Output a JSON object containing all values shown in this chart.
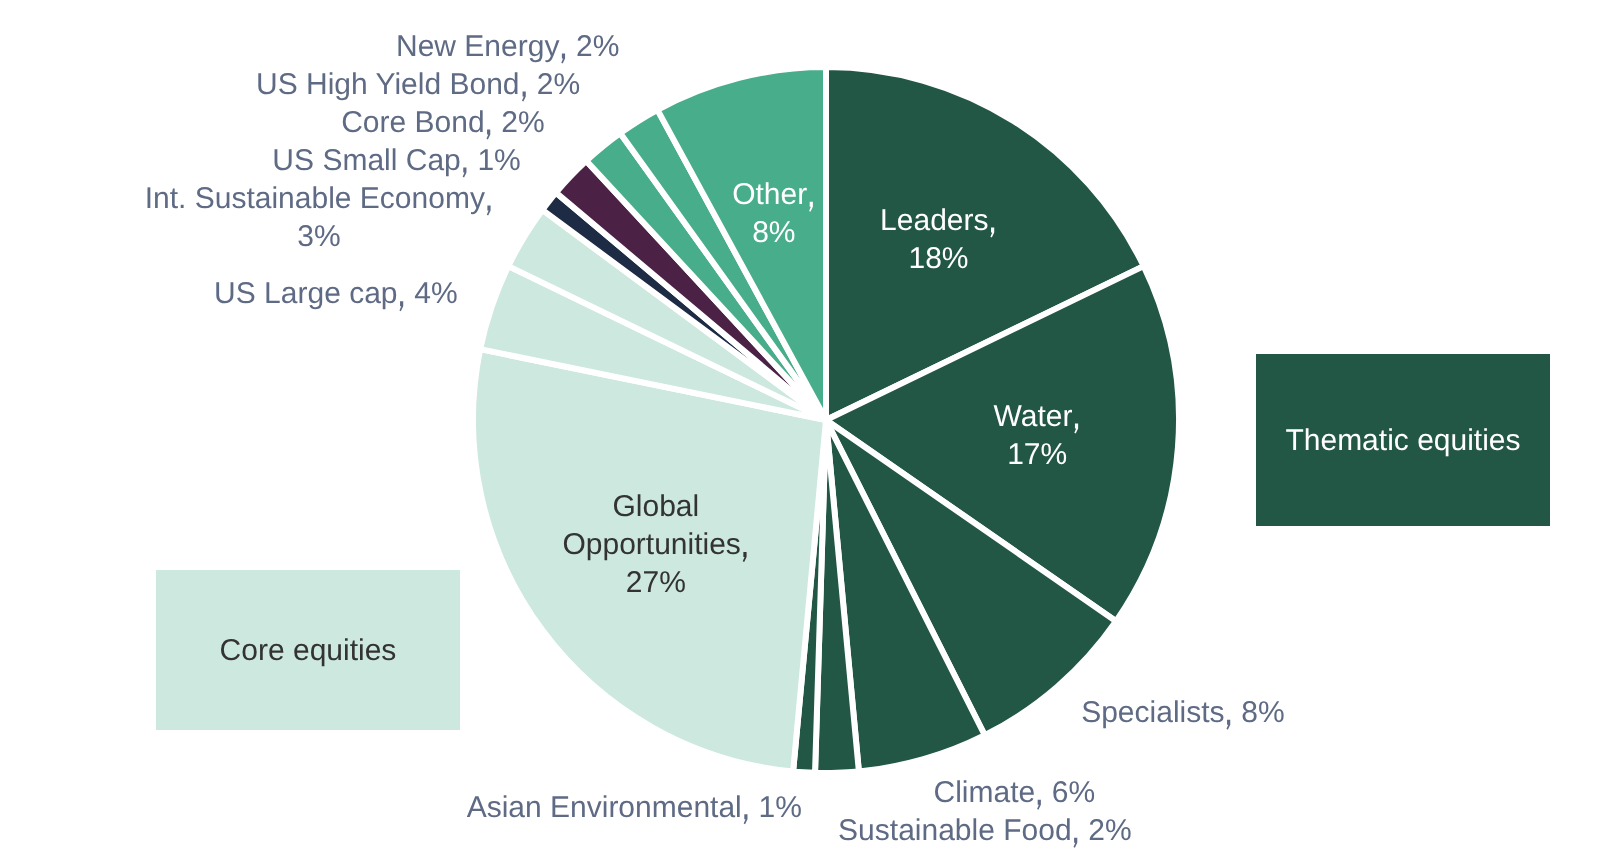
{
  "chart_data": {
    "type": "pie",
    "categories": [
      "Leaders",
      "Water",
      "Specialists",
      "Climate",
      "Sustainable Food",
      "Asian Environmental",
      "Global Opportunities",
      "US Large cap",
      "Int. Sustainable Economy",
      "US Small Cap",
      "Core Bond",
      "US High Yield Bond",
      "New Energy",
      "Other"
    ],
    "values": [
      18,
      17,
      8,
      6,
      2,
      1,
      27,
      4,
      3,
      1,
      2,
      2,
      2,
      8
    ],
    "value_labels": [
      "18%",
      "17%",
      "8%",
      "6%",
      "2%",
      "1%",
      "27%",
      "4%",
      "3%",
      "1%",
      "2%",
      "2%",
      "2%",
      "8%"
    ],
    "colors": [
      "#235745",
      "#235745",
      "#235745",
      "#235745",
      "#235745",
      "#235745",
      "#cce8df",
      "#cce8df",
      "#cce8df",
      "#1e2b45",
      "#4b2246",
      "#47ad8b",
      "#47ad8b",
      "#47ad8b"
    ],
    "annotations": [
      "Thematic equities",
      "Core equities"
    ],
    "legend": false
  }
}
